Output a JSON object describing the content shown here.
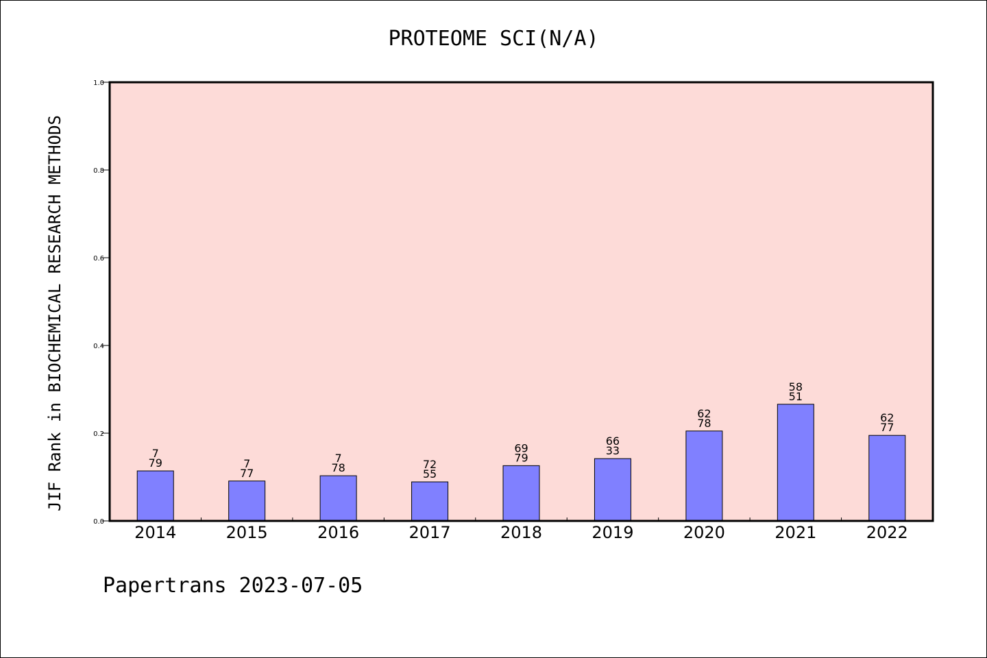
{
  "chart_data": {
    "type": "bar",
    "title": "PROTEOME SCI(N/A)",
    "xlabel": "",
    "ylabel": "JIF Rank in BIOCHEMICAL RESEARCH METHODS",
    "ylim": [
      0.0,
      1.0
    ],
    "yticks": [
      "0.0",
      "0.2",
      "0.4",
      "0.6",
      "0.8",
      "1.0"
    ],
    "ytick_values": [
      0.0,
      0.2,
      0.4,
      0.6,
      0.8,
      1.0
    ],
    "grid": false,
    "categories": [
      "2014",
      "2015",
      "2016",
      "2017",
      "2018",
      "2019",
      "2020",
      "2021",
      "2022"
    ],
    "values": [
      0.114,
      0.091,
      0.103,
      0.089,
      0.126,
      0.142,
      0.205,
      0.266,
      0.195
    ],
    "labels_top": [
      "7",
      "7",
      "7",
      "72",
      "69",
      "66",
      "62",
      "58",
      "62"
    ],
    "labels_bottom": [
      "79",
      "77",
      "78",
      "55",
      "79",
      "33",
      "78",
      "51",
      "77"
    ],
    "colors": {
      "bar": "#8080ff",
      "plot_background": "#fddbd8",
      "axis": "#000000"
    }
  },
  "footer": "Papertrans 2023-07-05"
}
